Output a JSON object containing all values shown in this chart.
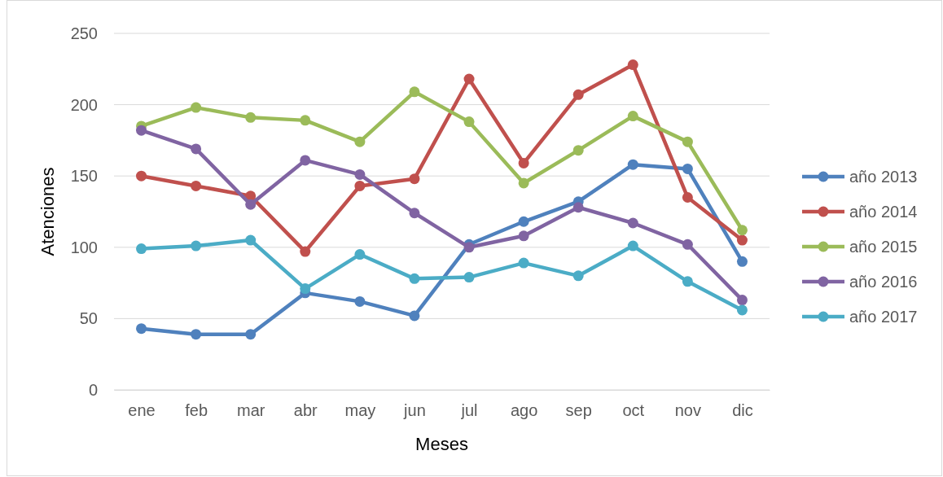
{
  "chart_data": {
    "type": "line",
    "xlabel": "Meses",
    "ylabel": "Atenciones",
    "categories": [
      "ene",
      "feb",
      "mar",
      "abr",
      "may",
      "jun",
      "jul",
      "ago",
      "sep",
      "oct",
      "nov",
      "dic"
    ],
    "series": [
      {
        "name": "año 2013",
        "color": "#4f81bd",
        "values": [
          43,
          39,
          39,
          68,
          62,
          52,
          102,
          118,
          132,
          158,
          155,
          90
        ]
      },
      {
        "name": "año 2014",
        "color": "#c0504d",
        "values": [
          150,
          143,
          136,
          97,
          143,
          148,
          218,
          159,
          207,
          228,
          135,
          105
        ]
      },
      {
        "name": "año 2015",
        "color": "#9bbb59",
        "values": [
          185,
          198,
          191,
          189,
          174,
          209,
          188,
          145,
          168,
          192,
          174,
          112
        ]
      },
      {
        "name": "año 2016",
        "color": "#8064a2",
        "values": [
          182,
          169,
          130,
          161,
          151,
          124,
          100,
          108,
          128,
          117,
          102,
          63
        ]
      },
      {
        "name": "año 2017",
        "color": "#4bacc6",
        "values": [
          99,
          101,
          105,
          71,
          95,
          78,
          79,
          89,
          80,
          101,
          76,
          56
        ]
      }
    ],
    "ylim": [
      0,
      250
    ],
    "yticks": [
      0,
      50,
      100,
      150,
      200,
      250
    ],
    "grid": "y",
    "legend": "right",
    "marker": "circle",
    "line_style": "solid"
  }
}
